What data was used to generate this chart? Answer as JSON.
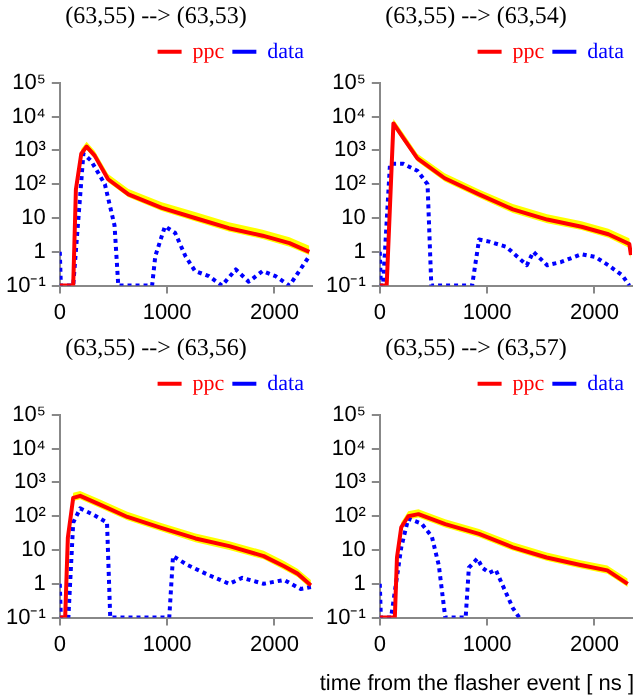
{
  "chart_data": [
    {
      "type": "line",
      "title": "(63,55) --> (63,53)",
      "log": true,
      "legend": "top",
      "marker": "none",
      "xlim": [
        0,
        2350
      ],
      "xticks": [
        0,
        1000,
        2000
      ],
      "ylim": [
        0.1,
        100000
      ],
      "yticks": [
        {
          "value": 0.1,
          "label": "10⁻¹"
        },
        {
          "value": 1,
          "label": "1"
        },
        {
          "value": 10,
          "label": "10"
        },
        {
          "value": 100,
          "label": "10²"
        },
        {
          "value": 1000,
          "label": "10³"
        },
        {
          "value": 10000,
          "label": "10⁴"
        },
        {
          "value": 100000,
          "label": "10⁵"
        }
      ],
      "series": [
        {
          "name": "ppc",
          "color": "#ff0000",
          "line_style": "solid",
          "x": [
            0,
            125,
            150,
            200,
            250,
            325,
            450,
            640,
            950,
            1260,
            1575,
            1890,
            2140,
            2325
          ],
          "values": [
            0.1,
            0.1,
            70,
            800,
            1300,
            700,
            140,
            50,
            20,
            10,
            5,
            3,
            1.8,
            1
          ],
          "lower": [
            0.1,
            0.1,
            60,
            650,
            1050,
            570,
            115,
            41,
            16,
            8,
            4,
            2.4,
            1.4,
            0.8
          ],
          "upper": [
            0.1,
            0.1,
            95,
            1100,
            1800,
            980,
            200,
            72,
            29,
            15,
            7.5,
            4.5,
            2.7,
            1.5
          ]
        },
        {
          "name": "data",
          "color": "#0000ff",
          "line_style": "dotted",
          "x": [
            0,
            10,
            125,
            220,
            290,
            420,
            510,
            545,
            860,
            890,
            980,
            1075,
            1170,
            1260,
            1390,
            1510,
            1640,
            1760,
            1890,
            2010,
            2140,
            2325
          ],
          "values": [
            1,
            0.1,
            0.1,
            800,
            500,
            100,
            6,
            0.1,
            0.1,
            0.75,
            5.7,
            3.6,
            0.75,
            0.27,
            0.19,
            0.1,
            0.3,
            0.13,
            0.27,
            0.19,
            0.1,
            0.75
          ]
        }
      ]
    },
    {
      "type": "line",
      "title": "(63,55) --> (63,54)",
      "log": true,
      "legend": "top",
      "marker": "none",
      "xlim": [
        0,
        2350
      ],
      "xticks": [
        0,
        1000,
        2000
      ],
      "ylim": [
        0.1,
        100000
      ],
      "yticks": [
        {
          "value": 0.1,
          "label": "10⁻¹"
        },
        {
          "value": 1,
          "label": "1"
        },
        {
          "value": 10,
          "label": "10"
        },
        {
          "value": 100,
          "label": "10²"
        },
        {
          "value": 1000,
          "label": "10³"
        },
        {
          "value": 10000,
          "label": "10⁴"
        },
        {
          "value": 100000,
          "label": "10⁵"
        }
      ],
      "series": [
        {
          "name": "ppc",
          "color": "#ff0000",
          "line_style": "solid",
          "x": [
            0,
            64,
            127,
            220,
            350,
            605,
            925,
            1240,
            1560,
            1880,
            2130,
            2325,
            2340
          ],
          "values": [
            0.1,
            0.1,
            6300,
            2300,
            580,
            150,
            50,
            18,
            9,
            5.5,
            3.3,
            1.7,
            0.8
          ],
          "lower": [
            0.1,
            0.1,
            5000,
            1850,
            470,
            120,
            40,
            14,
            7,
            4.4,
            2.6,
            1.3,
            0.6
          ],
          "upper": [
            0.1,
            0.1,
            8500,
            3200,
            800,
            210,
            70,
            26,
            13,
            8,
            4.8,
            2.5,
            1.2
          ]
        },
        {
          "name": "data",
          "color": "#0000ff",
          "line_style": "dotted",
          "x": [
            0,
            10,
            30,
            95,
            220,
            350,
            445,
            480,
            860,
            925,
            1020,
            1180,
            1370,
            1430,
            1560,
            1690,
            1880,
            2010,
            2130,
            2260,
            2325
          ],
          "values": [
            1,
            0.1,
            0.1,
            400,
            400,
            250,
            100,
            0.1,
            0.1,
            2.3,
            2,
            1.4,
            0.4,
            1,
            0.4,
            0.5,
            0.85,
            0.7,
            0.4,
            0.2,
            0.1
          ]
        }
      ]
    },
    {
      "type": "line",
      "title": "(63,55) --> (63,56)",
      "log": true,
      "legend": "top",
      "marker": "none",
      "xlim": [
        0,
        2350
      ],
      "xticks": [
        0,
        1000,
        2000
      ],
      "ylim": [
        0.1,
        100000
      ],
      "yticks": [
        {
          "value": 0.1,
          "label": "10⁻¹"
        },
        {
          "value": 1,
          "label": "1"
        },
        {
          "value": 10,
          "label": "10"
        },
        {
          "value": 100,
          "label": "10²"
        },
        {
          "value": 1000,
          "label": "10³"
        },
        {
          "value": 10000,
          "label": "10⁴"
        },
        {
          "value": 100000,
          "label": "10⁵"
        }
      ],
      "series": [
        {
          "name": "ppc",
          "color": "#ff0000",
          "line_style": "solid",
          "x": [
            0,
            50,
            75,
            125,
            190,
            375,
            630,
            945,
            1265,
            1580,
            1900,
            2090,
            2215,
            2340
          ],
          "values": [
            0.1,
            0.1,
            23,
            350,
            400,
            220,
            95,
            45,
            22,
            13,
            6.6,
            3.3,
            2,
            0.9
          ],
          "lower": [
            0.1,
            0.1,
            18,
            280,
            320,
            175,
            76,
            36,
            17,
            10,
            5.3,
            2.6,
            1.6,
            0.7
          ],
          "upper": [
            0.1,
            0.1,
            32,
            490,
            560,
            310,
            135,
            63,
            31,
            18,
            9.5,
            4.7,
            2.8,
            1.3
          ]
        },
        {
          "name": "data",
          "color": "#0000ff",
          "line_style": "dotted",
          "x": [
            0,
            10,
            80,
            125,
            190,
            315,
            440,
            470,
            1020,
            1055,
            1190,
            1390,
            1580,
            1700,
            1900,
            2090,
            2245,
            2340
          ],
          "values": [
            1,
            0.1,
            0.1,
            65,
            170,
            110,
            65,
            0.1,
            0.1,
            6.6,
            3.6,
            1.8,
            1,
            1.5,
            1,
            1.3,
            0.7,
            0.8
          ]
        }
      ]
    },
    {
      "type": "line",
      "title": "(63,55) --> (63,57)",
      "xlabel": "time from the flasher event [ ns ]",
      "log": true,
      "legend": "top",
      "marker": "none",
      "xlim": [
        0,
        2350
      ],
      "xticks": [
        0,
        1000,
        2000
      ],
      "ylim": [
        0.1,
        100000
      ],
      "yticks": [
        {
          "value": 0.1,
          "label": "10⁻¹"
        },
        {
          "value": 1,
          "label": "1"
        },
        {
          "value": 10,
          "label": "10"
        },
        {
          "value": 100,
          "label": "10²"
        },
        {
          "value": 1000,
          "label": "10³"
        },
        {
          "value": 10000,
          "label": "10⁴"
        },
        {
          "value": 100000,
          "label": "10⁵"
        }
      ],
      "series": [
        {
          "name": "ppc",
          "color": "#ff0000",
          "line_style": "solid",
          "x": [
            0,
            140,
            160,
            200,
            265,
            360,
            610,
            925,
            1240,
            1555,
            1870,
            2120,
            2310
          ],
          "values": [
            0.1,
            0.1,
            6,
            47,
            100,
            115,
            58,
            30,
            12,
            6,
            3.6,
            2.5,
            1
          ],
          "lower": [
            0.1,
            0.1,
            4.8,
            38,
            80,
            92,
            46,
            24,
            9.6,
            4.8,
            2.9,
            2,
            0.8
          ],
          "upper": [
            0.1,
            0.1,
            8.5,
            66,
            140,
            160,
            81,
            42,
            17,
            8.4,
            5,
            3.5,
            1.4
          ]
        },
        {
          "name": "data",
          "color": "#0000ff",
          "line_style": "dotted",
          "x": [
            0,
            10,
            105,
            200,
            265,
            390,
            485,
            550,
            610,
            800,
            830,
            910,
            955,
            1020,
            1080,
            1145,
            1240,
            1300
          ],
          "values": [
            1,
            0.1,
            0.1,
            12,
            85,
            60,
            25,
            3.5,
            0.1,
            0.1,
            3,
            5.6,
            3,
            2.1,
            2.6,
            0.9,
            0.19,
            0.1
          ]
        }
      ]
    }
  ]
}
